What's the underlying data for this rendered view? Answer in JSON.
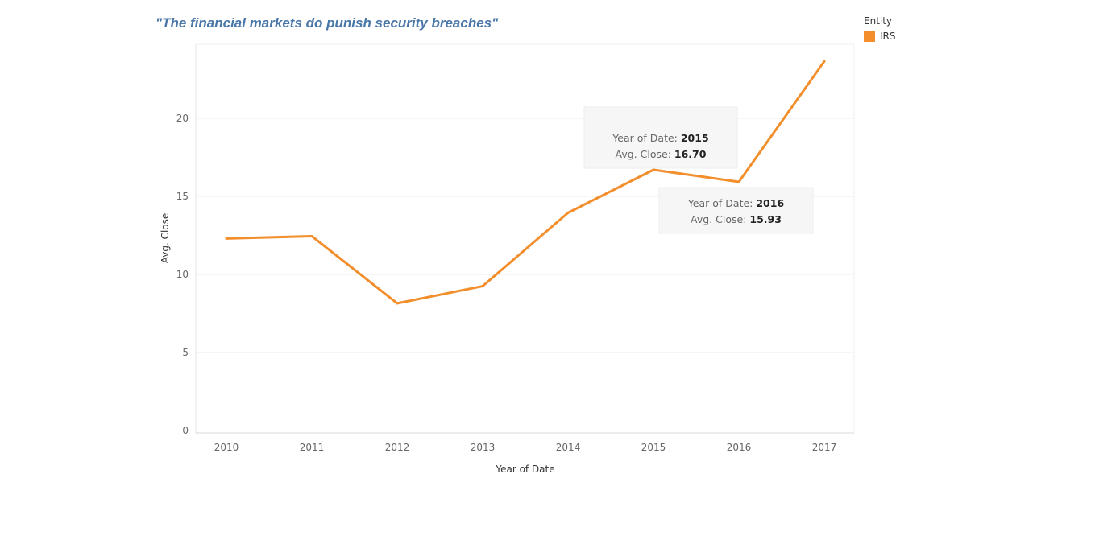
{
  "chart_data": {
    "type": "line",
    "title": "\"The financial markets do punish security breaches\"",
    "xlabel": "Year of Date",
    "ylabel": "Avg. Close",
    "x": [
      2010,
      2011,
      2012,
      2013,
      2014,
      2015,
      2016,
      2017
    ],
    "series": [
      {
        "name": "IRS",
        "color": "#f28e2b",
        "values": [
          12.3,
          12.45,
          8.15,
          9.25,
          13.95,
          16.7,
          15.93,
          23.65
        ]
      }
    ],
    "ylim": [
      0,
      24.5
    ],
    "yticks": [
      0,
      5,
      10,
      15,
      20
    ],
    "grid": true,
    "legend": {
      "title": "Entity",
      "position": "top-right"
    },
    "tooltips": [
      {
        "x": 2015,
        "label_x": "Year of Date:",
        "value_x": "2015",
        "label_y": "Avg. Close:",
        "value_y": "16.70"
      },
      {
        "x": 2016,
        "label_x": "Year of Date:",
        "value_x": "2016",
        "label_y": "Avg. Close:",
        "value_y": "15.93"
      }
    ]
  }
}
